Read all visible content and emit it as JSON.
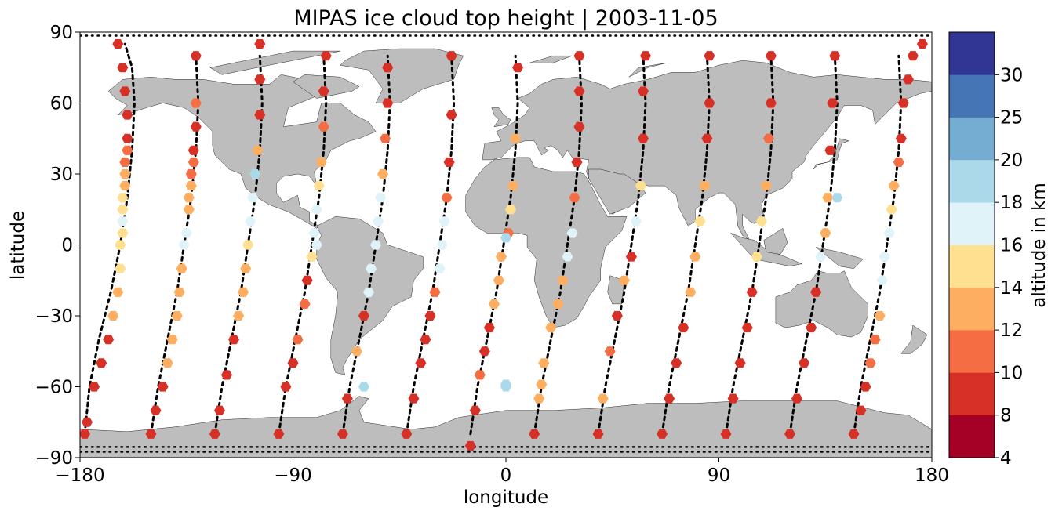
{
  "chart_data": {
    "type": "scatter",
    "title": "MIPAS ice cloud top height | 2003-11-05",
    "xlabel": "longitude",
    "ylabel": "latitude",
    "xlim": [
      -180,
      180
    ],
    "ylim": [
      -90,
      90
    ],
    "xticks": [
      -180,
      -90,
      0,
      90,
      180
    ],
    "yticks": [
      -90,
      -60,
      -30,
      0,
      30,
      60,
      90
    ],
    "xtick_labels": [
      "−180",
      "−90",
      "0",
      "90",
      "180"
    ],
    "ytick_labels": [
      "−90",
      "−60",
      "−30",
      "0",
      "30",
      "60",
      "90"
    ],
    "grid": false,
    "colorbar": {
      "label": "altitude in km",
      "bounds": [
        4,
        8,
        10,
        12,
        14,
        16,
        18,
        20,
        25,
        30
      ],
      "tick_labels": [
        "4",
        "8",
        "10",
        "12",
        "14",
        "16",
        "18",
        "20",
        "25",
        "30"
      ],
      "colors": [
        "#a50026",
        "#d73027",
        "#f46d43",
        "#fdae61",
        "#fee090",
        "#e0f3f8",
        "#abd9e9",
        "#74add1",
        "#4575b4",
        "#313695"
      ]
    },
    "land_color": "#bdbdbd",
    "track_marker": "black dots",
    "tracks": [
      {
        "x": [
          -178,
          -176,
          -172,
          -167,
          -163,
          -160,
          -158,
          -157,
          -158,
          -161
        ],
        "y": [
          -80,
          -60,
          -40,
          -20,
          0,
          20,
          40,
          60,
          75,
          85
        ]
      },
      {
        "x": [
          -150,
          -147,
          -143,
          -139,
          -136,
          -133,
          -131,
          -130,
          -131
        ],
        "y": [
          -80,
          -60,
          -40,
          -20,
          0,
          20,
          40,
          60,
          80
        ]
      },
      {
        "x": [
          -123,
          -120,
          -116,
          -112,
          -109,
          -106,
          -104,
          -103,
          -104
        ],
        "y": [
          -80,
          -60,
          -40,
          -20,
          0,
          20,
          40,
          60,
          80
        ]
      },
      {
        "x": [
          -96,
          -93,
          -89,
          -85,
          -82,
          -79,
          -77,
          -76,
          -77
        ],
        "y": [
          -80,
          -60,
          -40,
          -20,
          0,
          20,
          40,
          60,
          80
        ]
      },
      {
        "x": [
          -69,
          -66,
          -62,
          -58,
          -55,
          -52,
          -50,
          -49,
          -50
        ],
        "y": [
          -80,
          -60,
          -40,
          -20,
          0,
          20,
          40,
          60,
          80
        ]
      },
      {
        "x": [
          -42,
          -39,
          -35,
          -31,
          -28,
          -25,
          -23,
          -22,
          -23
        ],
        "y": [
          -80,
          -60,
          -40,
          -20,
          0,
          20,
          40,
          60,
          80
        ]
      },
      {
        "x": [
          -15,
          -12,
          -8,
          -4,
          -1,
          2,
          4,
          5,
          4
        ],
        "y": [
          -80,
          -60,
          -40,
          -20,
          0,
          20,
          40,
          60,
          80
        ]
      },
      {
        "x": [
          12,
          15,
          19,
          23,
          26,
          29,
          31,
          32,
          31
        ],
        "y": [
          -80,
          -60,
          -40,
          -20,
          0,
          20,
          40,
          60,
          80
        ]
      },
      {
        "x": [
          39,
          42,
          46,
          50,
          53,
          56,
          58,
          59,
          58
        ],
        "y": [
          -80,
          -60,
          -40,
          -20,
          0,
          20,
          40,
          60,
          80
        ]
      },
      {
        "x": [
          66,
          69,
          73,
          77,
          80,
          83,
          85,
          86,
          85
        ],
        "y": [
          -80,
          -60,
          -40,
          -20,
          0,
          20,
          40,
          60,
          80
        ]
      },
      {
        "x": [
          93,
          96,
          100,
          104,
          107,
          110,
          112,
          113,
          112
        ],
        "y": [
          -80,
          -60,
          -40,
          -20,
          0,
          20,
          40,
          60,
          80
        ]
      },
      {
        "x": [
          120,
          123,
          127,
          131,
          134,
          137,
          139,
          140,
          139
        ],
        "y": [
          -80,
          -60,
          -40,
          -20,
          0,
          20,
          40,
          60,
          80
        ]
      },
      {
        "x": [
          147,
          150,
          154,
          158,
          161,
          164,
          166,
          167,
          166
        ],
        "y": [
          -80,
          -60,
          -40,
          -20,
          0,
          20,
          40,
          60,
          80
        ]
      }
    ],
    "series": [
      {
        "x": [
          -178,
          -177,
          -174,
          -171,
          -168,
          -166,
          -164,
          -163,
          -163,
          -162,
          -162,
          -162,
          -162,
          -161,
          -161,
          -161,
          -160,
          -160,
          -160,
          -161,
          -162,
          -164
        ],
        "y": [
          -80,
          -75,
          -60,
          -50,
          -40,
          -30,
          -20,
          -10,
          0,
          5,
          10,
          15,
          20,
          25,
          30,
          35,
          40,
          45,
          55,
          65,
          75,
          85
        ],
        "z": [
          9,
          9,
          9,
          9,
          9,
          12,
          13,
          14,
          15,
          15,
          17,
          15,
          14,
          13,
          12,
          11,
          10,
          9,
          9,
          9,
          9,
          9
        ]
      },
      {
        "x": [
          -150,
          -148,
          -145,
          -143,
          -141,
          -139,
          -138,
          -137,
          -136,
          -135,
          -134,
          -134,
          -133,
          -133,
          -132,
          -132,
          -131,
          -131,
          -131
        ],
        "y": [
          -80,
          -70,
          -60,
          -50,
          -40,
          -30,
          -20,
          -10,
          0,
          5,
          15,
          20,
          25,
          30,
          35,
          40,
          50,
          60,
          80
        ],
        "z": [
          9,
          9,
          9,
          12,
          13,
          12,
          12,
          13,
          16,
          17,
          13,
          12,
          13,
          11,
          10,
          9,
          9,
          10,
          9
        ]
      },
      {
        "x": [
          -123,
          -121,
          -118,
          -115,
          -113,
          -111,
          -110,
          -109,
          -108,
          -107,
          -106,
          -105,
          -104,
          -104,
          -104
        ],
        "y": [
          -80,
          -70,
          -55,
          -40,
          -30,
          -20,
          -10,
          0,
          10,
          20,
          30,
          40,
          55,
          70,
          85
        ],
        "z": [
          9,
          9,
          9,
          9,
          12,
          13,
          13,
          14,
          16,
          17,
          18,
          13,
          9,
          9,
          9
        ]
      },
      {
        "x": [
          -96,
          -93,
          -90,
          -88,
          -85,
          -84,
          -82,
          -81,
          -80,
          -79,
          -78,
          -77,
          -77,
          -76
        ],
        "y": [
          -80,
          -60,
          -50,
          -40,
          -25,
          -15,
          -5,
          5,
          15,
          25,
          35,
          50,
          65,
          80
        ],
        "z": [
          9,
          9,
          9,
          11,
          10,
          9,
          15,
          17,
          16,
          14,
          13,
          10,
          9,
          9
        ]
      },
      {
        "x": [
          -69,
          -67,
          -63,
          -60,
          -58,
          -57,
          -55,
          -54,
          -53,
          -52,
          -51,
          -50,
          -50
        ],
        "y": [
          -80,
          -65,
          -45,
          -30,
          -20,
          -10,
          0,
          10,
          20,
          30,
          45,
          60,
          75
        ],
        "z": [
          9,
          9,
          13,
          9,
          16,
          17,
          17,
          16,
          16,
          12,
          10,
          9,
          9
        ]
      },
      {
        "x": [
          -42,
          -39,
          -36,
          -34,
          -32,
          -30,
          -28,
          -27,
          -26,
          -25,
          -24,
          -23,
          -23
        ],
        "y": [
          -80,
          -65,
          -50,
          -40,
          -30,
          -20,
          -10,
          0,
          10,
          20,
          35,
          55,
          80
        ],
        "z": [
          9,
          9,
          9,
          9,
          9,
          11,
          17,
          17,
          16,
          11,
          9,
          9,
          9
        ]
      },
      {
        "x": [
          -15,
          -13,
          -11,
          -9,
          -7,
          -5,
          -3,
          -2,
          1,
          2,
          3,
          4,
          5
        ],
        "y": [
          -85,
          -70,
          -55,
          -45,
          -35,
          -25,
          -15,
          -5,
          5,
          15,
          25,
          45,
          75
        ],
        "z": [
          9,
          9,
          11,
          9,
          9,
          12,
          13,
          12,
          11,
          14,
          13,
          12,
          9
        ]
      },
      {
        "x": [
          12,
          14,
          16,
          19,
          22,
          24,
          26,
          28,
          29,
          30,
          31,
          31,
          31
        ],
        "y": [
          -80,
          -65,
          -50,
          -35,
          -25,
          -15,
          -5,
          5,
          20,
          35,
          50,
          65,
          80
        ],
        "z": [
          9,
          13,
          12,
          13,
          13,
          12,
          16,
          16,
          11,
          9,
          9,
          9,
          9
        ]
      },
      {
        "x": [
          39,
          41,
          44,
          47,
          50,
          53,
          55,
          57,
          58,
          58,
          59
        ],
        "y": [
          -80,
          -65,
          -45,
          -30,
          -15,
          -5,
          10,
          25,
          45,
          65,
          80
        ],
        "z": [
          9,
          12,
          11,
          9,
          12,
          9,
          16,
          14,
          9,
          9,
          9
        ]
      },
      {
        "x": [
          66,
          69,
          72,
          75,
          78,
          80,
          82,
          84,
          85,
          86,
          86
        ],
        "y": [
          -80,
          -65,
          -50,
          -35,
          -20,
          -5,
          10,
          25,
          45,
          60,
          80
        ],
        "z": [
          9,
          9,
          9,
          9,
          12,
          13,
          14,
          13,
          9,
          9,
          9
        ]
      },
      {
        "x": [
          93,
          96,
          99,
          102,
          104,
          106,
          108,
          110,
          111,
          112,
          112
        ],
        "y": [
          -80,
          -65,
          -50,
          -35,
          -20,
          -5,
          10,
          25,
          45,
          60,
          80
        ],
        "z": [
          9,
          9,
          9,
          9,
          9,
          14,
          15,
          13,
          11,
          9,
          9
        ]
      },
      {
        "x": [
          120,
          123,
          126,
          129,
          131,
          133,
          135,
          136,
          137,
          138,
          139
        ],
        "y": [
          -80,
          -65,
          -50,
          -35,
          -20,
          -5,
          5,
          20,
          40,
          60,
          80
        ],
        "z": [
          9,
          9,
          9,
          9,
          9,
          16,
          13,
          13,
          9,
          9,
          9
        ]
      },
      {
        "x": [
          147,
          150,
          152,
          154,
          156,
          158,
          159,
          160,
          162,
          163,
          164,
          166,
          167,
          168,
          170,
          172,
          176
        ],
        "y": [
          -80,
          -70,
          -60,
          -50,
          -40,
          -30,
          -15,
          -5,
          5,
          15,
          25,
          35,
          45,
          60,
          70,
          80,
          85
        ],
        "z": [
          9,
          9,
          9,
          11,
          11,
          12,
          17,
          17,
          16,
          15,
          13,
          11,
          9,
          9,
          9,
          9,
          9
        ]
      },
      {
        "x": [
          -60,
          0,
          0,
          15,
          0,
          140,
          -80
        ],
        "y": [
          -60,
          -60,
          3,
          -59,
          -59,
          20,
          0
        ],
        "z": [
          18,
          18,
          18,
          13,
          18,
          18,
          17
        ]
      }
    ]
  }
}
